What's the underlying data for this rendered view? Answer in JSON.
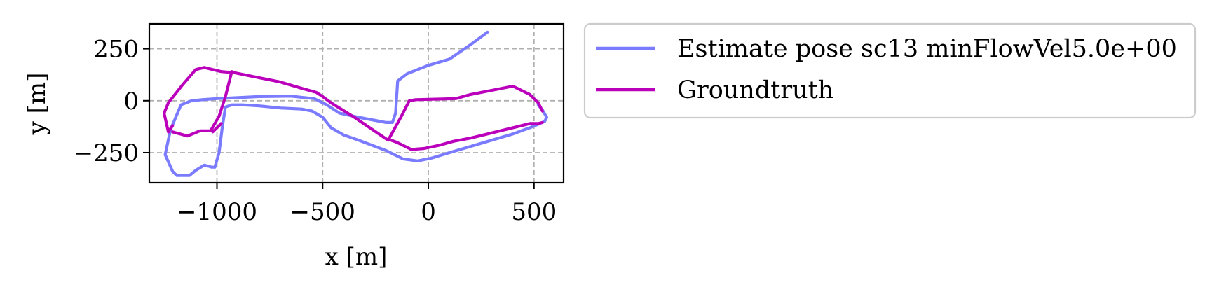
{
  "chart_data": {
    "type": "line",
    "title": "",
    "xlabel": "x [m]",
    "ylabel": "y [m]",
    "xlim": [
      -1320,
      640
    ],
    "ylim": [
      -395,
      370
    ],
    "xticks": [
      -1000,
      -500,
      0,
      500
    ],
    "xtick_labels": [
      "−1000",
      "−500",
      "0",
      "500"
    ],
    "yticks": [
      -250,
      0,
      250
    ],
    "ytick_labels": [
      "−250",
      "0",
      "250"
    ],
    "grid": true,
    "legend_position": "outside-right",
    "series": [
      {
        "name": "Estimate pose sc13 minFlowVel5.0e+00",
        "color": "#7b7bff",
        "x": [
          -1010,
          -1025,
          -1040,
          -1060,
          -1100,
          -1130,
          -1190,
          -1210,
          -1245,
          -1220,
          -1170,
          -1120,
          -1070,
          -1000,
          -800,
          -650,
          -540,
          -480,
          -420,
          -330,
          -250,
          -200,
          -170,
          -155,
          -145,
          -100,
          0,
          100,
          200,
          280
        ],
        "y": [
          -320,
          -320,
          -315,
          -310,
          -335,
          -360,
          -360,
          -340,
          -260,
          -140,
          -20,
          0,
          5,
          10,
          20,
          22,
          10,
          -20,
          -60,
          -80,
          -95,
          -105,
          -105,
          -60,
          95,
          130,
          170,
          200,
          270,
          330
        ]
      },
      {
        "name": "",
        "color": "#7b7bff",
        "x": [
          -1010,
          -990,
          -975,
          -960,
          -930,
          -880,
          -800,
          -700,
          -600,
          -550,
          -500,
          -460,
          -400,
          -330,
          -200,
          -120,
          -50,
          20,
          100,
          200,
          300,
          400,
          480,
          550,
          560,
          540,
          520
        ],
        "y": [
          -320,
          -250,
          -130,
          -30,
          -20,
          -20,
          -25,
          -35,
          -40,
          -50,
          -80,
          -130,
          -165,
          -190,
          -240,
          -280,
          -290,
          -275,
          -250,
          -220,
          -190,
          -160,
          -130,
          -100,
          -80,
          -45,
          -20
        ]
      },
      {
        "name": "Groundtruth",
        "color": "#bb00bb",
        "x": [
          -1210,
          -1230,
          -1250,
          -1230,
          -1160,
          -1100,
          -1060,
          -1020,
          -980,
          -920,
          -700,
          -600,
          -530,
          -500,
          -460,
          -350,
          -190,
          -130,
          -90,
          -60,
          130,
          200,
          300,
          400,
          480,
          520,
          540
        ],
        "y": [
          -120,
          -150,
          -60,
          -10,
          80,
          150,
          160,
          150,
          140,
          135,
          90,
          60,
          40,
          20,
          -10,
          -80,
          -190,
          -80,
          0,
          5,
          10,
          30,
          50,
          70,
          30,
          -10,
          -50
        ]
      },
      {
        "name": "",
        "color": "#bb00bb",
        "x": [
          -1210,
          -1140,
          -1080,
          -1030,
          -990,
          -960,
          -930
        ],
        "y": [
          -150,
          -170,
          -145,
          -145,
          -75,
          20,
          140
        ]
      },
      {
        "name": "",
        "color": "#bb00bb",
        "x": [
          -190,
          -150,
          -80,
          -20,
          50,
          120,
          200,
          300,
          400,
          480,
          520,
          540
        ],
        "y": [
          -185,
          -200,
          -235,
          -230,
          -215,
          -195,
          -180,
          -155,
          -130,
          -110,
          -110,
          -105
        ]
      },
      {
        "name": "",
        "color": "#bb00bb",
        "x": [
          -1020,
          -1000,
          -980
        ],
        "y": [
          -150,
          -130,
          -110
        ]
      }
    ]
  },
  "legend": {
    "items": [
      {
        "label": "Estimate pose sc13 minFlowVel5.0e+00",
        "color": "#7b7bff"
      },
      {
        "label": "Groundtruth",
        "color": "#bb00bb"
      }
    ]
  }
}
